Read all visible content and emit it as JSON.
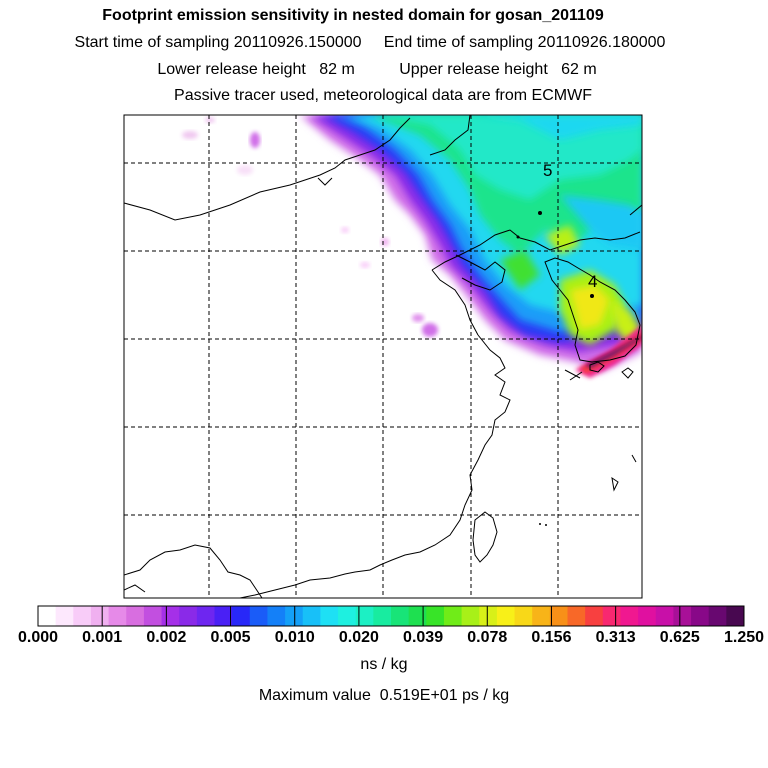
{
  "header": {
    "title": "Footprint emission sensitivity in nested domain for gosan_201109",
    "sampling": "Start time of sampling 20110926.150000     End time of sampling 20110926.180000",
    "release": "Lower release height   82 m          Upper release height   62 m",
    "note": "Passive tracer used, meteorological data are from ECMWF"
  },
  "map": {
    "region_labels": [
      "5",
      "4"
    ],
    "colors": {
      "grid": "#000000",
      "coast": "#000000",
      "background": "#ffffff"
    }
  },
  "colorbar": {
    "tick_labels": [
      "0.000",
      "0.001",
      "0.002",
      "0.005",
      "0.010",
      "0.020",
      "0.039",
      "0.078",
      "0.156",
      "0.313",
      "0.625",
      "1.250"
    ],
    "colors": [
      "#ffffff",
      "#fde8fd",
      "#f8ccf8",
      "#f0b0f0",
      "#e68ae8",
      "#d86ee0",
      "#c24fe0",
      "#a530e8",
      "#8a2ae8",
      "#6e26f0",
      "#4a20f5",
      "#2828f8",
      "#1a5cf8",
      "#1480f8",
      "#14a0f8",
      "#18c0f8",
      "#1ee0f4",
      "#1ef0e0",
      "#1cf0c4",
      "#18eca0",
      "#18e478",
      "#1ee050",
      "#38e428",
      "#70ec18",
      "#a8f018",
      "#d8f018",
      "#f8f018",
      "#f8d818",
      "#f8b418",
      "#f89018",
      "#f86828",
      "#f84040",
      "#f82870",
      "#f01890",
      "#e010a0",
      "#c810a8",
      "#a81098",
      "#880888",
      "#680870",
      "#480850"
    ],
    "units": "ns / kg",
    "maximum": "Maximum value  0.519E+01 ps / kg"
  }
}
